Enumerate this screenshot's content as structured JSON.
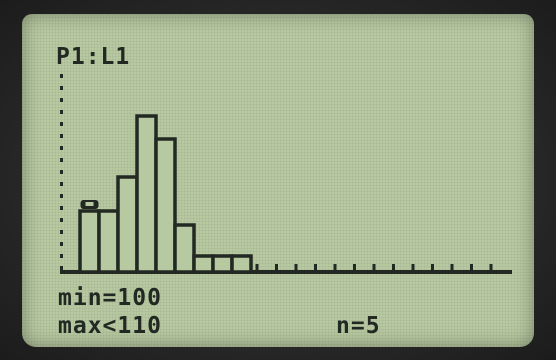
{
  "screen": {
    "plot_label": "P1:L1",
    "stats": {
      "min_text": "min=100",
      "max_text": "max<110",
      "n_text": "n=5"
    }
  },
  "colors": {
    "lcd_background": "#b7c9a1",
    "lcd_ink": "#222822",
    "bezel": "#2b2b2b"
  },
  "histogram": {
    "bar_heights_relative": [
      0.39,
      0.39,
      0.61,
      1.0,
      0.85,
      0.3,
      0.1,
      0.1,
      0.1
    ],
    "selected_bar_index": 0,
    "trace_cursor": "trace-cursor-icon"
  }
}
